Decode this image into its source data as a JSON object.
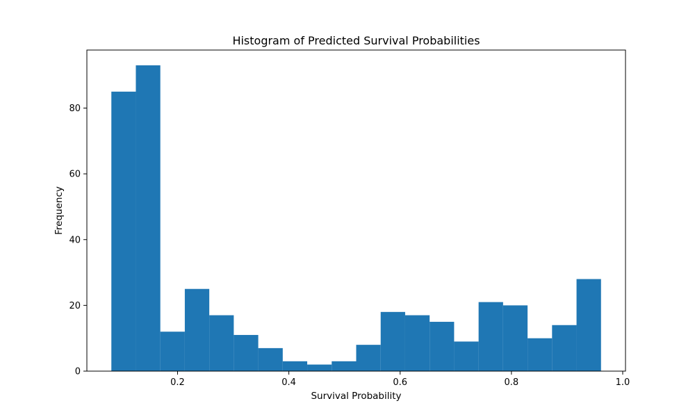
{
  "chart_data": {
    "type": "bar",
    "title": "Histogram of Predicted Survival Probabilities",
    "xlabel": "Survival Probability",
    "ylabel": "Frequency",
    "bins": [
      [
        0.081,
        0.125
      ],
      [
        0.125,
        0.169
      ],
      [
        0.169,
        0.213
      ],
      [
        0.213,
        0.257
      ],
      [
        0.257,
        0.301
      ],
      [
        0.301,
        0.345
      ],
      [
        0.345,
        0.389
      ],
      [
        0.389,
        0.433
      ],
      [
        0.433,
        0.477
      ],
      [
        0.477,
        0.521
      ],
      [
        0.521,
        0.565
      ],
      [
        0.565,
        0.609
      ],
      [
        0.609,
        0.653
      ],
      [
        0.653,
        0.697
      ],
      [
        0.697,
        0.741
      ],
      [
        0.741,
        0.785
      ],
      [
        0.785,
        0.829
      ],
      [
        0.829,
        0.873
      ],
      [
        0.873,
        0.917
      ],
      [
        0.917,
        0.961
      ]
    ],
    "values": [
      85,
      93,
      12,
      25,
      17,
      11,
      7,
      3,
      2,
      3,
      8,
      18,
      17,
      15,
      9,
      21,
      20,
      10,
      14,
      28
    ],
    "xlim": [
      0.037,
      1.005
    ],
    "ylim": [
      0,
      97.65
    ],
    "xticks": [
      "0.2",
      "0.4",
      "0.6",
      "0.8",
      "1.0"
    ],
    "yticks": [
      "0",
      "20",
      "40",
      "60",
      "80"
    ],
    "bar_color": "#1f77b4",
    "grid": false,
    "legend": false
  }
}
